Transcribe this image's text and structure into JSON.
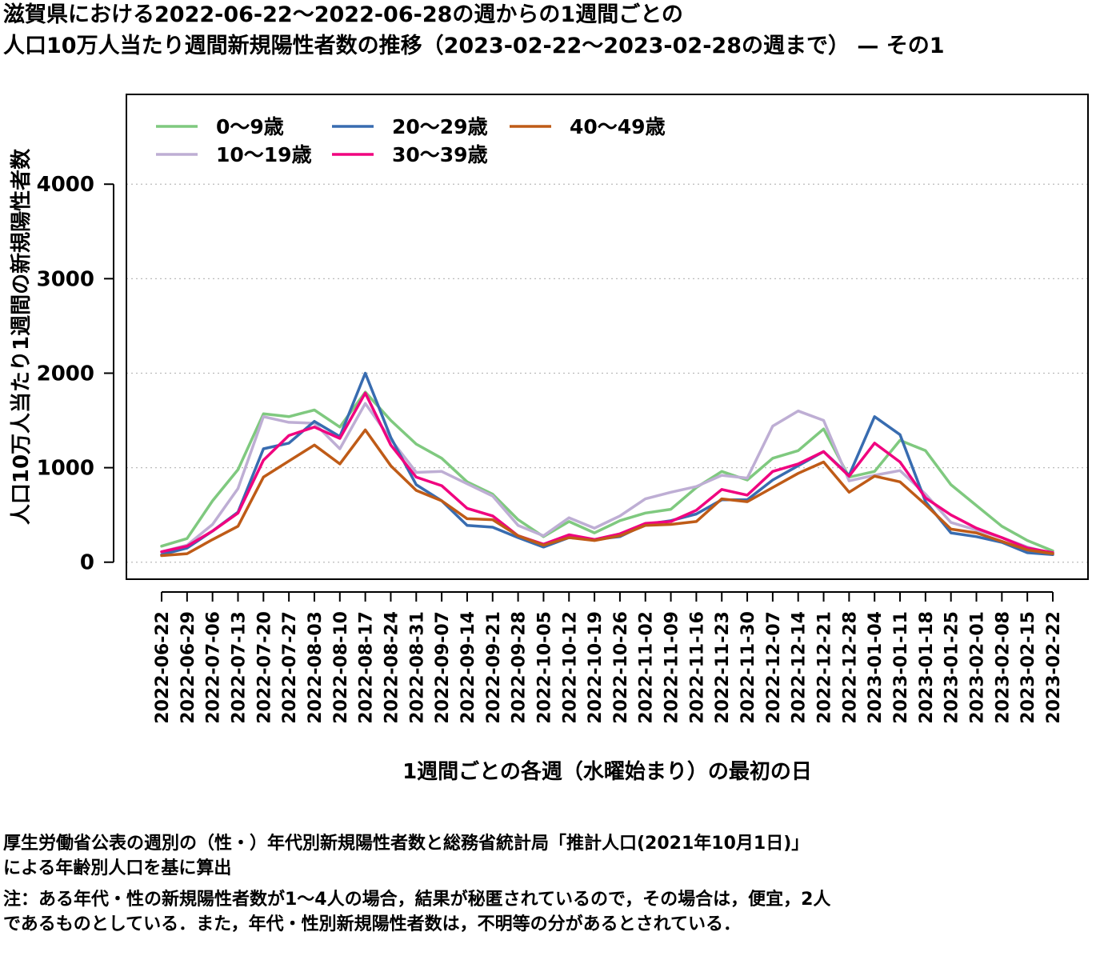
{
  "header": {
    "title_line1": "滋賀県における2022-06-22〜2022-06-28の週からの1週間ごとの",
    "title_line2": "人口10万人当たり週間新規陽性者数の推移（2023-02-22〜2023-02-28の週まで） — その1"
  },
  "chart_data": {
    "type": "line",
    "xlabel": "1週間ごとの各週（水曜始まり）の最初の日",
    "ylabel": "人口10万人当たり1週間の新規陽性者数",
    "ylim": [
      -180,
      4950
    ],
    "yticks": [
      0,
      1000,
      2000,
      3000,
      4000
    ],
    "grid": "horizontal-dotted",
    "legend_position": "top-left",
    "categories": [
      "2022-06-22",
      "2022-06-29",
      "2022-07-06",
      "2022-07-13",
      "2022-07-20",
      "2022-07-27",
      "2022-08-03",
      "2022-08-10",
      "2022-08-17",
      "2022-08-24",
      "2022-08-31",
      "2022-09-07",
      "2022-09-14",
      "2022-09-21",
      "2022-09-28",
      "2022-10-05",
      "2022-10-12",
      "2022-10-19",
      "2022-10-26",
      "2022-11-02",
      "2022-11-09",
      "2022-11-16",
      "2022-11-23",
      "2022-11-30",
      "2022-12-07",
      "2022-12-14",
      "2022-12-21",
      "2022-12-28",
      "2023-01-04",
      "2023-01-11",
      "2023-01-18",
      "2023-01-25",
      "2023-02-01",
      "2023-02-08",
      "2023-02-15",
      "2023-02-22"
    ],
    "series": [
      {
        "name": "0〜9歳",
        "color": "#7fc97f",
        "values": [
          170,
          250,
          650,
          980,
          1570,
          1540,
          1610,
          1430,
          1800,
          1500,
          1250,
          1100,
          850,
          720,
          450,
          270,
          430,
          310,
          440,
          520,
          560,
          790,
          960,
          870,
          1100,
          1180,
          1410,
          900,
          960,
          1290,
          1180,
          820,
          600,
          380,
          230,
          120
        ]
      },
      {
        "name": "10〜19歳",
        "color": "#beaed4",
        "values": [
          110,
          180,
          400,
          780,
          1540,
          1480,
          1470,
          1200,
          1680,
          1300,
          950,
          960,
          830,
          700,
          390,
          280,
          470,
          360,
          490,
          670,
          740,
          800,
          920,
          890,
          1440,
          1600,
          1500,
          860,
          920,
          970,
          720,
          420,
          340,
          260,
          160,
          90
        ]
      },
      {
        "name": "20〜29歳",
        "color": "#386cb0",
        "values": [
          80,
          150,
          330,
          530,
          1200,
          1260,
          1490,
          1330,
          2000,
          1320,
          820,
          650,
          390,
          370,
          260,
          160,
          260,
          240,
          270,
          400,
          440,
          510,
          660,
          660,
          870,
          1020,
          1170,
          920,
          1540,
          1350,
          640,
          310,
          270,
          210,
          100,
          80
        ]
      },
      {
        "name": "30〜39歳",
        "color": "#f0027f",
        "values": [
          110,
          170,
          330,
          520,
          1080,
          1340,
          1430,
          1310,
          1790,
          1240,
          900,
          810,
          570,
          490,
          280,
          190,
          290,
          240,
          300,
          410,
          430,
          550,
          770,
          710,
          960,
          1040,
          1170,
          910,
          1260,
          1060,
          680,
          500,
          360,
          260,
          150,
          100
        ]
      },
      {
        "name": "40〜49歳",
        "color": "#bf5b17",
        "values": [
          70,
          90,
          240,
          380,
          900,
          1070,
          1240,
          1040,
          1400,
          1020,
          760,
          650,
          460,
          450,
          280,
          180,
          260,
          230,
          280,
          390,
          400,
          430,
          670,
          640,
          790,
          940,
          1060,
          740,
          910,
          850,
          610,
          350,
          310,
          220,
          130,
          90
        ]
      }
    ]
  },
  "footer": {
    "note_line1": "厚生労働省公表の週別の（性・）年代別新規陽性者数と総務省統計局「推計人口(2021年10月1日)」",
    "note_line2": "による年齢別人口を基に算出",
    "note_line3": "注：ある年代・性の新規陽性者数が1〜4人の場合，結果が秘匿されているので，その場合は，便宜，2人",
    "note_line4": "であるものとしている．また，年代・性別新規陽性者数は，不明等の分があるとされている．"
  }
}
